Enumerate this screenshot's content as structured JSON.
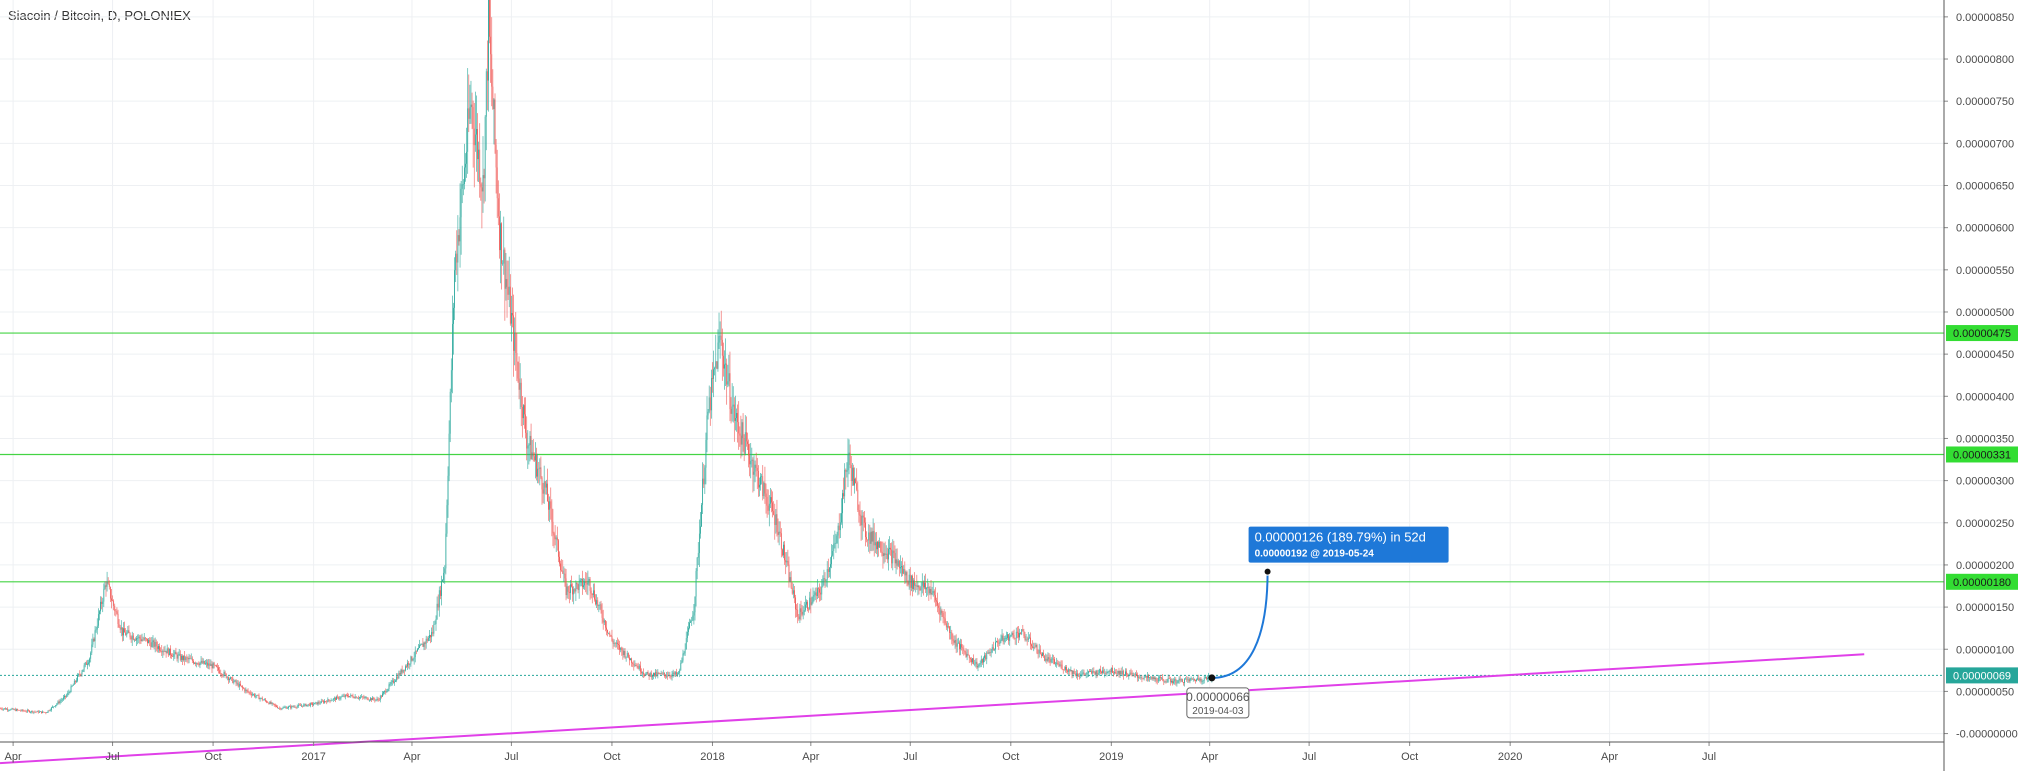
{
  "chart_data": {
    "type": "candlestick",
    "title": "Siacoin / Bitcoin, D, POLONIEX",
    "xlabel": "",
    "ylabel": "",
    "ylim": [
      -1e-07,
      8.7e-06
    ],
    "yticks": [
      "0.00000850",
      "0.00000800",
      "0.00000750",
      "0.00000700",
      "0.00000650",
      "0.00000600",
      "0.00000550",
      "0.00000500",
      "0.00000450",
      "0.00000400",
      "0.00000350",
      "0.00000300",
      "0.00000250",
      "0.00000200",
      "0.00000150",
      "0.00000100",
      "0.00000050",
      "-0.00000000"
    ],
    "ytick_values": [
      8.5e-06,
      8e-06,
      7.5e-06,
      7e-06,
      6.5e-06,
      6e-06,
      5.5e-06,
      5e-06,
      4.5e-06,
      4e-06,
      3.5e-06,
      3e-06,
      2.5e-06,
      2e-06,
      1.5e-06,
      1e-06,
      5e-07,
      0
    ],
    "xticks": [
      {
        "label": "Apr",
        "date": "2016-04-01"
      },
      {
        "label": "Jul",
        "date": "2016-07-01"
      },
      {
        "label": "Oct",
        "date": "2016-10-01"
      },
      {
        "label": "2017",
        "date": "2017-01-01"
      },
      {
        "label": "Apr",
        "date": "2017-04-01"
      },
      {
        "label": "Jul",
        "date": "2017-07-01"
      },
      {
        "label": "Oct",
        "date": "2017-10-01"
      },
      {
        "label": "2018",
        "date": "2018-01-01"
      },
      {
        "label": "Apr",
        "date": "2018-04-01"
      },
      {
        "label": "Jul",
        "date": "2018-07-01"
      },
      {
        "label": "Oct",
        "date": "2018-10-01"
      },
      {
        "label": "2019",
        "date": "2019-01-01"
      },
      {
        "label": "Apr",
        "date": "2019-04-01"
      },
      {
        "label": "Jul",
        "date": "2019-07-01"
      },
      {
        "label": "Oct",
        "date": "2019-10-01"
      },
      {
        "label": "2020",
        "date": "2020-01-01"
      },
      {
        "label": "Apr",
        "date": "2020-04-01"
      },
      {
        "label": "Jul",
        "date": "2020-07-01"
      }
    ],
    "series": [
      {
        "price_path": [
          [
            "2016-03-20",
            3e-07
          ],
          [
            "2016-04-10",
            2.7e-07
          ],
          [
            "2016-05-01",
            2.5e-07
          ],
          [
            "2016-05-20",
            4.5e-07
          ],
          [
            "2016-06-10",
            9e-07
          ],
          [
            "2016-06-25",
            1.8e-06
          ],
          [
            "2016-07-10",
            1.2e-06
          ],
          [
            "2016-08-01",
            1.1e-06
          ],
          [
            "2016-09-01",
            9e-07
          ],
          [
            "2016-10-01",
            8e-07
          ],
          [
            "2016-11-01",
            5e-07
          ],
          [
            "2016-12-01",
            3e-07
          ],
          [
            "2017-01-01",
            3.5e-07
          ],
          [
            "2017-02-01",
            4.5e-07
          ],
          [
            "2017-03-01",
            4e-07
          ],
          [
            "2017-03-20",
            7e-07
          ],
          [
            "2017-04-20",
            1.2e-06
          ],
          [
            "2017-05-01",
            2e-06
          ],
          [
            "2017-05-10",
            5.5e-06
          ],
          [
            "2017-05-25",
            7.5e-06
          ],
          [
            "2017-06-05",
            6.5e-06
          ],
          [
            "2017-06-10",
            8.4e-06
          ],
          [
            "2017-06-20",
            6e-06
          ],
          [
            "2017-07-01",
            4.9e-06
          ],
          [
            "2017-07-15",
            3.5e-06
          ],
          [
            "2017-08-01",
            2.9e-06
          ],
          [
            "2017-08-20",
            1.7e-06
          ],
          [
            "2017-09-10",
            1.8e-06
          ],
          [
            "2017-10-01",
            1.1e-06
          ],
          [
            "2017-11-01",
            7e-07
          ],
          [
            "2017-12-01",
            7e-07
          ],
          [
            "2017-12-15",
            1.5e-06
          ],
          [
            "2017-12-28",
            3.8e-06
          ],
          [
            "2018-01-08",
            4.7e-06
          ],
          [
            "2018-01-20",
            3.8e-06
          ],
          [
            "2018-02-10",
            3.1e-06
          ],
          [
            "2018-03-01",
            2.5e-06
          ],
          [
            "2018-03-20",
            1.4e-06
          ],
          [
            "2018-04-10",
            1.7e-06
          ],
          [
            "2018-04-25",
            2.3e-06
          ],
          [
            "2018-05-05",
            3.3e-06
          ],
          [
            "2018-05-20",
            2.4e-06
          ],
          [
            "2018-06-15",
            2.1e-06
          ],
          [
            "2018-07-01",
            1.8e-06
          ],
          [
            "2018-07-20",
            1.7e-06
          ],
          [
            "2018-08-10",
            1.1e-06
          ],
          [
            "2018-09-01",
            8e-07
          ],
          [
            "2018-09-20",
            1.1e-06
          ],
          [
            "2018-10-10",
            1.2e-06
          ],
          [
            "2018-11-01",
            9e-07
          ],
          [
            "2018-12-01",
            7e-07
          ],
          [
            "2019-01-01",
            7.5e-07
          ],
          [
            "2019-02-01",
            6.6e-07
          ],
          [
            "2019-03-01",
            6.2e-07
          ],
          [
            "2019-04-03",
            6.6e-07
          ]
        ]
      }
    ],
    "horizontal_levels": [
      {
        "value": 4.75e-06,
        "label": "0.00000475",
        "color": "#44d444"
      },
      {
        "value": 3.31e-06,
        "label": "0.00000331",
        "color": "#44d444"
      },
      {
        "value": 1.8e-06,
        "label": "0.00000180",
        "color": "#44d444"
      }
    ],
    "last_price": {
      "value": 6.9e-07,
      "label": "0.00000069",
      "color": "#26a69a"
    },
    "trend_line": {
      "color": "#e040e8",
      "start": {
        "date": "2016-03-20",
        "value": -3.5e-07
      },
      "end": {
        "date": "2020-11-20",
        "value": 9.4e-07
      }
    },
    "projection": {
      "color": "#1e78d8",
      "start": {
        "date": "2019-04-03",
        "value": 6.6e-07
      },
      "end": {
        "date": "2019-05-24",
        "value": 1.92e-06
      },
      "start_label": "0.00000066",
      "start_date_label": "2019-04-03",
      "box_line1": "0.00000126 (189.79%) in 52d",
      "box_line2": "0.00000192  @ 2019-05-24"
    },
    "candle_colors": {
      "up": "#26a69a",
      "down": "#ef5350",
      "wick": "#555555"
    },
    "grid": true,
    "legend": "none"
  }
}
